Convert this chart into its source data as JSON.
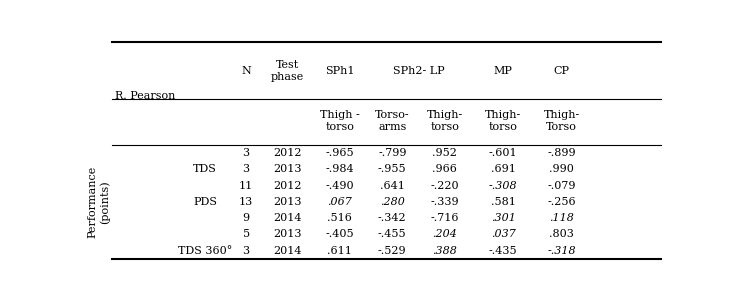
{
  "bg_color": "white",
  "font_size": 8.0,
  "r_pearson_label": "R. Pearson",
  "row_label_left": "Performance\n(points)",
  "col_x": {
    "group": 0.19,
    "N": 0.26,
    "phase": 0.33,
    "v1": 0.42,
    "v2": 0.51,
    "v3": 0.6,
    "v4": 0.7,
    "v5": 0.8
  },
  "rows": [
    {
      "group": "",
      "N": "3",
      "phase": "2012",
      "vals": [
        "-.965",
        "-.799",
        ".952",
        "-.601",
        "-.899"
      ],
      "italic": [
        false,
        false,
        false,
        false,
        false
      ]
    },
    {
      "group": "TDS",
      "N": "3",
      "phase": "2013",
      "vals": [
        "-.984",
        "-.955",
        ".966",
        ".691",
        ".990"
      ],
      "italic": [
        false,
        false,
        false,
        false,
        false
      ]
    },
    {
      "group": "",
      "N": "11",
      "phase": "2012",
      "vals": [
        "-.490",
        ".641",
        "-.220",
        "-.308",
        "-.079"
      ],
      "italic": [
        false,
        false,
        false,
        true,
        false
      ]
    },
    {
      "group": "PDS",
      "N": "13",
      "phase": "2013",
      "vals": [
        ".067",
        ".280",
        "-.339",
        ".581",
        "-.256"
      ],
      "italic": [
        true,
        true,
        false,
        false,
        false
      ]
    },
    {
      "group": "",
      "N": "9",
      "phase": "2014",
      "vals": [
        ".516",
        "-.342",
        "-.716",
        ".301",
        ".118"
      ],
      "italic": [
        false,
        false,
        false,
        true,
        true
      ]
    },
    {
      "group": "",
      "N": "5",
      "phase": "2013",
      "vals": [
        "-.405",
        "-.455",
        ".204",
        ".037",
        ".803"
      ],
      "italic": [
        false,
        false,
        true,
        true,
        false
      ]
    },
    {
      "group": "TDS 360°",
      "N": "3",
      "phase": "2014",
      "vals": [
        ".611",
        "-.529",
        ".388",
        "-.435",
        "-.318"
      ],
      "italic": [
        false,
        false,
        true,
        false,
        true
      ]
    }
  ]
}
